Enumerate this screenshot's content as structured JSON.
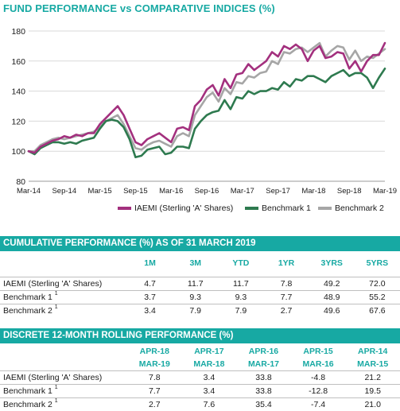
{
  "title": "FUND PERFORMANCE vs COMPARATIVE INDICES (%)",
  "chart_data": {
    "type": "line",
    "title": "FUND PERFORMANCE vs COMPARATIVE INDICES (%)",
    "x_tick_labels": [
      "Mar-14",
      "Sep-14",
      "Mar-15",
      "Sep-15",
      "Mar-16",
      "Sep-16",
      "Mar-17",
      "Sep-17",
      "Mar-18",
      "Sep-18",
      "Mar-19"
    ],
    "ylim": [
      80,
      180
    ],
    "y_ticks": [
      80,
      100,
      120,
      140,
      160,
      180
    ],
    "grid": "horizontal",
    "legend_position": "bottom",
    "series": [
      {
        "name": "IAEMI (Sterling 'A' Shares)",
        "color": "#a3307e",
        "values": [
          100,
          99,
          103,
          105,
          107,
          108,
          110,
          109,
          111,
          110,
          112,
          112,
          118,
          122,
          126,
          130,
          124,
          115,
          106,
          104,
          108,
          110,
          112,
          109,
          106,
          115,
          116,
          114,
          130,
          134,
          141,
          144,
          137,
          148,
          142,
          151,
          152,
          158,
          154,
          157,
          160,
          166,
          163,
          170,
          168,
          171,
          168,
          160,
          167,
          170,
          162,
          163,
          166,
          165,
          155,
          160,
          153,
          160,
          164,
          164,
          172
        ]
      },
      {
        "name": "Benchmark 1",
        "color": "#2e7a4f",
        "values": [
          100,
          98,
          102,
          104,
          106,
          106,
          105,
          106,
          105,
          107,
          108,
          109,
          115,
          120,
          121,
          120,
          116,
          108,
          96,
          97,
          101,
          102,
          103,
          98,
          99,
          103,
          103,
          102,
          115,
          120,
          124,
          126,
          127,
          134,
          128,
          136,
          135,
          140,
          138,
          140,
          140,
          142,
          141,
          146,
          143,
          148,
          147,
          150,
          150,
          148,
          146,
          150,
          152,
          154,
          150,
          152,
          152,
          149,
          142,
          149,
          155
        ]
      },
      {
        "name": "Benchmark 2",
        "color": "#a6a6a6",
        "values": [
          100,
          100,
          104,
          106,
          108,
          109,
          108,
          109,
          110,
          111,
          112,
          113,
          116,
          120,
          122,
          124,
          118,
          110,
          102,
          101,
          104,
          106,
          107,
          105,
          103,
          110,
          112,
          110,
          124,
          130,
          136,
          139,
          133,
          142,
          138,
          146,
          145,
          150,
          149,
          152,
          153,
          160,
          158,
          166,
          165,
          168,
          169,
          166,
          169,
          172,
          163,
          167,
          170,
          169,
          161,
          167,
          160,
          163,
          162,
          165,
          168
        ]
      }
    ]
  },
  "table1": {
    "header": "CUMULATIVE PERFORMANCE (%) AS OF 31 MARCH 2019",
    "columns": [
      "1M",
      "3M",
      "YTD",
      "1YR",
      "3YRS",
      "5YRS"
    ],
    "rows": [
      {
        "label": "IAEMI (Sterling 'A' Shares)",
        "sup": "",
        "values": [
          "4.7",
          "11.7",
          "11.7",
          "7.8",
          "49.2",
          "72.0"
        ]
      },
      {
        "label": "Benchmark 1",
        "sup": "1",
        "values": [
          "3.7",
          "9.3",
          "9.3",
          "7.7",
          "48.9",
          "55.2"
        ]
      },
      {
        "label": "Benchmark 2",
        "sup": "1",
        "values": [
          "3.4",
          "7.9",
          "7.9",
          "2.7",
          "49.6",
          "67.6"
        ]
      }
    ]
  },
  "table2": {
    "header": "DISCRETE 12-MONTH ROLLING PERFORMANCE (%)",
    "columns_top": [
      "APR-18",
      "APR-17",
      "APR-16",
      "APR-15",
      "APR-14"
    ],
    "columns_bottom": [
      "MAR-19",
      "MAR-18",
      "MAR-17",
      "MAR-16",
      "MAR-15"
    ],
    "rows": [
      {
        "label": "IAEMI (Sterling 'A' Shares)",
        "sup": "",
        "values": [
          "7.8",
          "3.4",
          "33.8",
          "-4.8",
          "21.2"
        ]
      },
      {
        "label": "Benchmark 1",
        "sup": "1",
        "values": [
          "7.7",
          "3.4",
          "33.8",
          "-12.8",
          "19.5"
        ]
      },
      {
        "label": "Benchmark 2",
        "sup": "1",
        "values": [
          "2.7",
          "7.6",
          "35.4",
          "-7.4",
          "21.0"
        ]
      }
    ]
  }
}
